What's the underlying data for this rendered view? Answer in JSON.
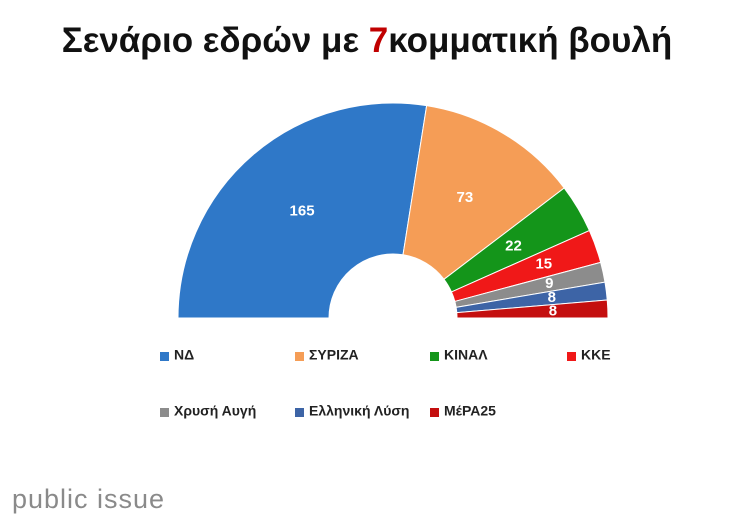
{
  "chart_data": {
    "type": "semicircle",
    "title": [
      "Σενάριο εδρών με ",
      "7",
      "κομματική βουλή"
    ],
    "categories": [
      "ΝΔ",
      "ΣΥΡΙΖΑ",
      "ΚΙΝΑΛ",
      "ΚΚΕ",
      "Χρυσή Αυγή",
      "Ελληνική Λύση",
      "ΜέΡΑ25"
    ],
    "values": [
      165,
      73,
      22,
      15,
      9,
      8,
      8
    ],
    "colors": [
      "#2f78c8",
      "#f59d56",
      "#14951a",
      "#f01818",
      "#8c8c8c",
      "#3d64a6",
      "#c40f0f"
    ],
    "source": "public issue"
  }
}
